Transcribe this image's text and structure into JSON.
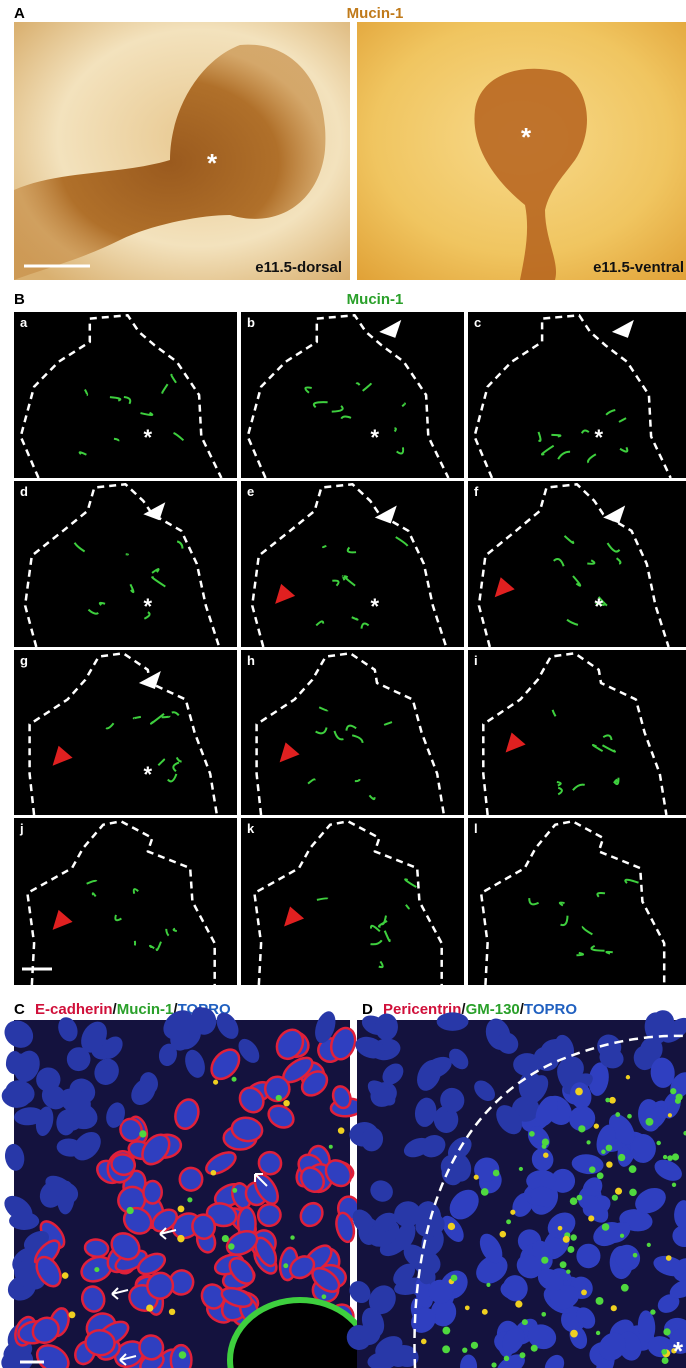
{
  "panels": {
    "A": {
      "label": "A",
      "title": "Mucin-1",
      "captions": [
        "e11.5-dorsal",
        "e11.5-ventral"
      ]
    },
    "B": {
      "label": "B",
      "title": "Mucin-1",
      "subpanels": [
        "a",
        "b",
        "c",
        "d",
        "e",
        "f",
        "g",
        "h",
        "i",
        "j",
        "k",
        "l"
      ]
    },
    "C": {
      "label": "C",
      "title": [
        "E-cadherin",
        "/",
        "Mucin-1",
        "/",
        "TOPRO"
      ]
    },
    "D": {
      "label": "D",
      "title": [
        "Pericentrin",
        "/",
        "GM-130",
        "/",
        "TOPRO"
      ]
    }
  },
  "marker": "*"
}
